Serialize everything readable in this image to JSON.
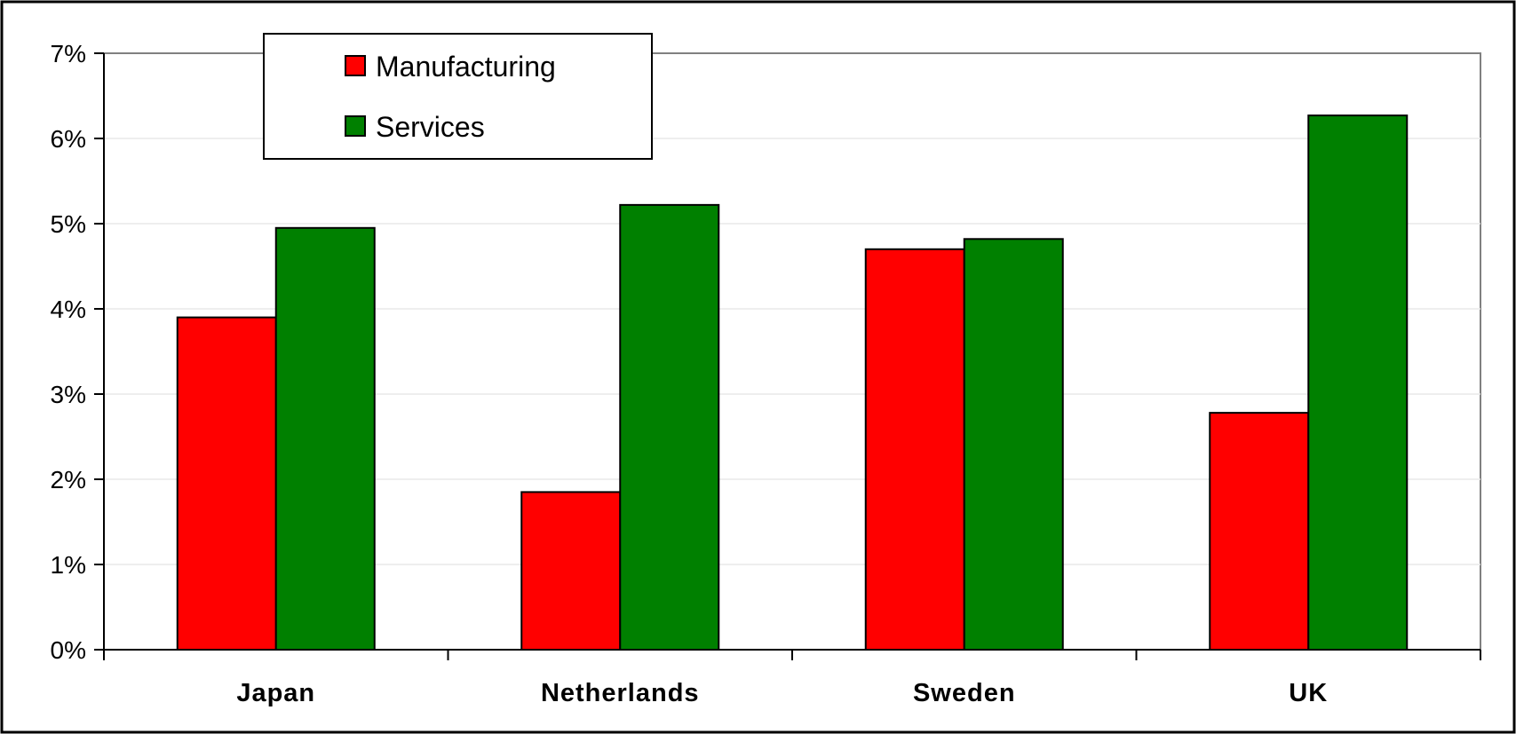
{
  "chart_data": {
    "type": "bar",
    "categories": [
      "Japan",
      "Netherlands",
      "Sweden",
      "UK"
    ],
    "series": [
      {
        "name": "Manufacturing",
        "color": "#ff0000",
        "values": [
          3.9,
          1.85,
          4.7,
          2.78
        ]
      },
      {
        "name": "Services",
        "color": "#008000",
        "values": [
          4.95,
          5.22,
          4.82,
          6.27
        ]
      }
    ],
    "ylim": [
      0,
      7
    ],
    "y_ticks": [
      0,
      1,
      2,
      3,
      4,
      5,
      6,
      7
    ],
    "y_tick_labels": [
      "0%",
      "1%",
      "2%",
      "3%",
      "4%",
      "5%",
      "6%",
      "7%"
    ],
    "grid": "horizontal",
    "legend_position": "top-left",
    "title": "",
    "xlabel": "",
    "ylabel": ""
  }
}
